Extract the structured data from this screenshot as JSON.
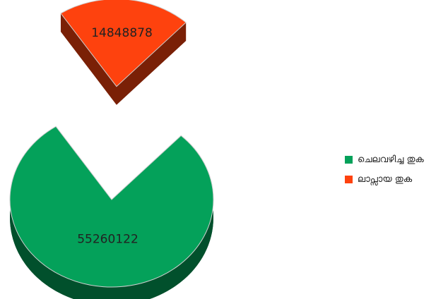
{
  "chart_data": {
    "type": "pie",
    "style": "3d-exploded",
    "series": [
      {
        "name": "ചെലവഴിച്ച തുക",
        "value": 55260122,
        "color": "#04a15a",
        "side_color": "#01502c"
      },
      {
        "name": "ലാപ്സായ തുക",
        "value": 14848878,
        "color": "#fe420e",
        "side_color": "#7a2006"
      }
    ],
    "legend": {
      "position": "right"
    }
  }
}
